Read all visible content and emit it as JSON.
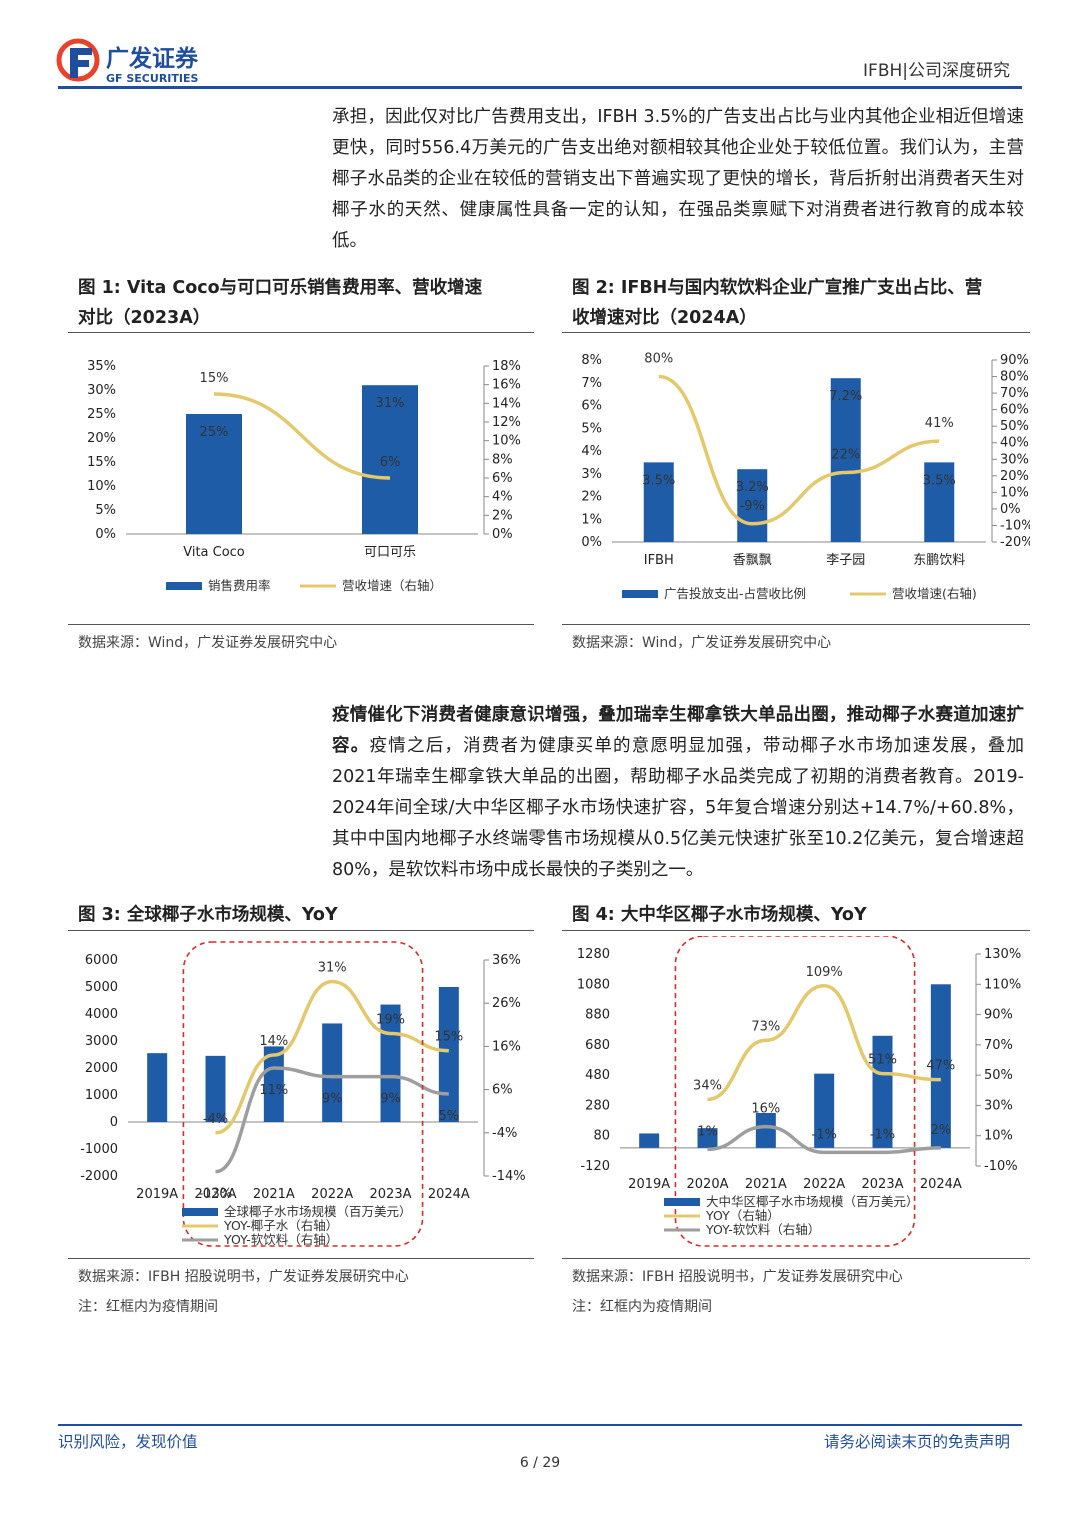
{
  "header": {
    "logo_cn": "广发证券",
    "logo_en": "GF SECURITIES",
    "right": "IFBH|公司深度研究"
  },
  "para1": "承担，因此仅对比广告费用支出，IFBH 3.5%的广告支出占比与业内其他企业相近但增速更快，同时556.4万美元的广告支出绝对额相较其他企业处于较低位置。我们认为，主营椰子水品类的企业在较低的营销支出下普遍实现了更快的增长，背后折射出消费者天生对椰子水的天然、健康属性具备一定的认知，在强品类禀赋下对消费者进行教育的成本较低。",
  "para2": {
    "bold": "疫情催化下消费者健康意识增强，叠加瑞幸生椰拿铁大单品出圈，推动椰子水赛道加速扩容。",
    "normal": "疫情之后，消费者为健康买单的意愿明显加强，带动椰子水市场加速发展，叠加2021年瑞幸生椰拿铁大单品的出圈，帮助椰子水品类完成了初期的消费者教育。2019-2024年间全球/大中华区椰子水市场快速扩容，5年复合增速分别达+14.7%/+60.8%，其中中国内地椰子水终端零售市场规模从0.5亿美元快速扩张至10.2亿美元，复合增速超80%，是软饮料市场中成长最快的子类别之一。"
  },
  "fig1": {
    "title_line1": "图 1: Vita Coco与可口可乐销售费用率、营收增速",
    "title_line2": "对比（2023A）",
    "source": "数据来源：Wind，广发证券发展研究中心"
  },
  "fig2": {
    "title_line1": "图 2: IFBH与国内软饮料企业广宣推广支出占比、营",
    "title_line2": "收增速对比（2024A）",
    "source": "数据来源：Wind，广发证券发展研究中心"
  },
  "fig3": {
    "title": "图 3: 全球椰子水市场规模、YoY",
    "source": "数据来源：IFBH 招股说明书，广发证券发展研究中心",
    "note": "注：红框内为疫情期间"
  },
  "fig4": {
    "title": "图 4: 大中华区椰子水市场规模、YoY",
    "source": "数据来源：IFBH 招股说明书，广发证券发展研究中心",
    "note": "注：红框内为疫情期间"
  },
  "chart_data": [
    {
      "type": "bar",
      "categories": [
        "Vita Coco",
        "可口可乐"
      ],
      "series": [
        {
          "name": "销售费用率",
          "axis": "left",
          "values": [
            25,
            31
          ],
          "labels": [
            "25%",
            "31%"
          ]
        },
        {
          "name": "营收增速（右轴）",
          "axis": "right",
          "kind": "line",
          "values": [
            15,
            6
          ],
          "labels": [
            "15%",
            "6%"
          ]
        }
      ],
      "yticks_left": [
        "0%",
        "5%",
        "10%",
        "15%",
        "20%",
        "25%",
        "30%",
        "35%"
      ],
      "ylim_left": [
        0,
        35
      ],
      "yticks_right": [
        "0%",
        "2%",
        "4%",
        "6%",
        "8%",
        "10%",
        "12%",
        "14%",
        "16%",
        "18%"
      ],
      "ylim_right": [
        0,
        18
      ],
      "colors": {
        "bar": "#1f5ca8",
        "line": "#e3c96b"
      }
    },
    {
      "type": "bar",
      "categories": [
        "IFBH",
        "香飘飘",
        "李子园",
        "东鹏饮料"
      ],
      "series": [
        {
          "name": "广告投放支出-占营收比例",
          "axis": "left",
          "values": [
            3.5,
            3.2,
            7.2,
            3.5
          ],
          "labels": [
            "3.5%",
            "3.2%",
            "7.2%",
            "3.5%"
          ]
        },
        {
          "name": "营收增速(右轴)",
          "axis": "right",
          "kind": "line",
          "values": [
            80,
            -9,
            22,
            41
          ],
          "labels": [
            "80%",
            "-9%",
            "22%",
            "41%"
          ]
        }
      ],
      "yticks_left": [
        "0%",
        "1%",
        "2%",
        "3%",
        "4%",
        "5%",
        "6%",
        "7%",
        "8%"
      ],
      "ylim_left": [
        0,
        8
      ],
      "yticks_right": [
        "-20%",
        "-10%",
        "0%",
        "10%",
        "20%",
        "30%",
        "40%",
        "50%",
        "60%",
        "70%",
        "80%",
        "90%"
      ],
      "ylim_right": [
        -20,
        90
      ],
      "colors": {
        "bar": "#1f5ca8",
        "line": "#e3c96b"
      }
    },
    {
      "type": "bar",
      "categories": [
        "2019A",
        "2020A",
        "2021A",
        "2022A",
        "2023A",
        "2024A"
      ],
      "series": [
        {
          "name": "全球椰子水市场规模（百万美元）",
          "axis": "left",
          "values": [
            2550,
            2450,
            2800,
            3650,
            4350,
            5000
          ]
        },
        {
          "name": "YOY-椰子水（右轴）",
          "axis": "right",
          "kind": "line",
          "values": [
            null,
            -4,
            14,
            31,
            19,
            15
          ],
          "labels": [
            "",
            "-4%",
            "14%",
            "31%",
            "19%",
            "15%"
          ]
        },
        {
          "name": "YOY-软饮料（右轴）",
          "axis": "right",
          "kind": "line",
          "values": [
            null,
            -13,
            11,
            9,
            9,
            5
          ],
          "labels": [
            "",
            "-13%",
            "11%",
            "9%",
            "9%",
            "5%"
          ]
        }
      ],
      "yticks_left": [
        "-2000",
        "-1000",
        "0",
        "1000",
        "2000",
        "3000",
        "4000",
        "5000",
        "6000"
      ],
      "ylim_left": [
        -2000,
        6000
      ],
      "yticks_right": [
        "-14%",
        "-4%",
        "6%",
        "16%",
        "26%",
        "36%"
      ],
      "ylim_right": [
        -14,
        36
      ],
      "pandemic_box": [
        "2020A",
        "2023A"
      ],
      "colors": {
        "bar": "#1f5ca8",
        "line1": "#e3c96b",
        "line2": "#9e9e9e",
        "box": "#d62b2b"
      }
    },
    {
      "type": "bar",
      "categories": [
        "2019A",
        "2020A",
        "2021A",
        "2022A",
        "2023A",
        "2024A"
      ],
      "series": [
        {
          "name": "大中华区椰子水市场规模（百万美元）",
          "axis": "left",
          "values": [
            95,
            130,
            230,
            490,
            740,
            1080
          ]
        },
        {
          "name": "YOY（右轴）",
          "axis": "right",
          "kind": "line",
          "values": [
            null,
            34,
            73,
            109,
            51,
            47
          ],
          "labels": [
            "",
            "34%",
            "73%",
            "109%",
            "51%",
            "47%"
          ]
        },
        {
          "name": "YOY-软饮料（右轴）",
          "axis": "right",
          "kind": "line",
          "values": [
            null,
            1,
            16,
            -1,
            -1,
            2
          ],
          "labels": [
            "",
            "1%",
            "16%",
            "-1%",
            "-1%",
            "2%"
          ]
        }
      ],
      "yticks_left": [
        "-120",
        "80",
        "280",
        "480",
        "680",
        "880",
        "1080",
        "1280"
      ],
      "ylim_left": [
        -120,
        1280
      ],
      "yticks_right": [
        "-10%",
        "10%",
        "30%",
        "50%",
        "70%",
        "90%",
        "110%",
        "130%"
      ],
      "ylim_right": [
        -10,
        130
      ],
      "pandemic_box": [
        "2020A",
        "2023A"
      ],
      "colors": {
        "bar": "#1f5ca8",
        "line1": "#e3c96b",
        "line2": "#9e9e9e",
        "box": "#d62b2b"
      }
    }
  ],
  "footer": {
    "left": "识别风险，发现价值",
    "right": "请务必阅读末页的免责声明",
    "page": "6 / 29"
  }
}
